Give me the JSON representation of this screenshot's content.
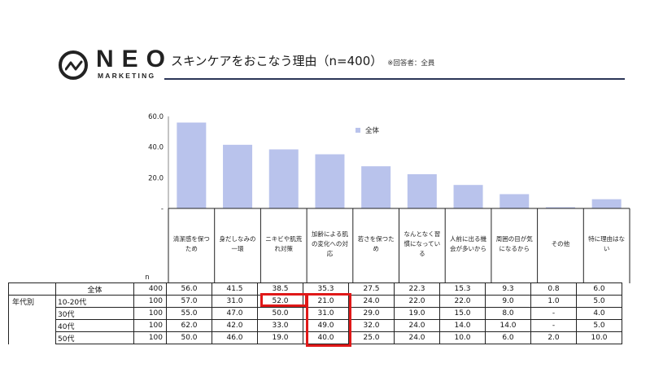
{
  "header": {
    "logo_word": "NEO",
    "logo_sub": "MARKETING",
    "title": "スキンケアをおこなう理由（n=400）",
    "title_note": "※回答者：全員"
  },
  "chart_data": {
    "type": "bar",
    "categories": [
      "清潔感を保つため",
      "身だしなみの一環",
      "ニキビや肌荒れ対策",
      "加齢による肌の変化への対応",
      "若さを保つため",
      "なんとなく習慣になっている",
      "人前に出る機会が多いから",
      "周囲の目が気になるから",
      "その他",
      "特に理由はない"
    ],
    "series": [
      {
        "name": "全体",
        "values": [
          56.0,
          41.5,
          38.5,
          35.3,
          27.5,
          22.3,
          15.3,
          9.3,
          0.8,
          6.0
        ],
        "color": "#b9c3ec"
      }
    ],
    "y_ticks": [
      "60.0",
      "40.0",
      "20.0",
      "-"
    ],
    "ylim": [
      0,
      60
    ],
    "legend_position": "top-right",
    "grid": false
  },
  "table": {
    "n_label": "n",
    "group_label": "年代別",
    "rows": [
      {
        "label": "全体",
        "n": "400",
        "values": [
          "56.0",
          "41.5",
          "38.5",
          "35.3",
          "27.5",
          "22.3",
          "15.3",
          "9.3",
          "0.8",
          "6.0"
        ]
      },
      {
        "label": "10-20代",
        "n": "100",
        "values": [
          "57.0",
          "31.0",
          "52.0",
          "21.0",
          "24.0",
          "22.0",
          "22.0",
          "9.0",
          "1.0",
          "5.0"
        ]
      },
      {
        "label": "30代",
        "n": "100",
        "values": [
          "55.0",
          "47.0",
          "50.0",
          "31.0",
          "29.0",
          "19.0",
          "15.0",
          "8.0",
          "-",
          "4.0"
        ]
      },
      {
        "label": "40代",
        "n": "100",
        "values": [
          "62.0",
          "42.0",
          "33.0",
          "49.0",
          "32.0",
          "24.0",
          "14.0",
          "14.0",
          "-",
          "5.0"
        ]
      },
      {
        "label": "50代",
        "n": "100",
        "values": [
          "50.0",
          "46.0",
          "19.0",
          "40.0",
          "25.0",
          "24.0",
          "10.0",
          "6.0",
          "2.0",
          "10.0"
        ]
      }
    ]
  },
  "highlight_color": "#e01818"
}
